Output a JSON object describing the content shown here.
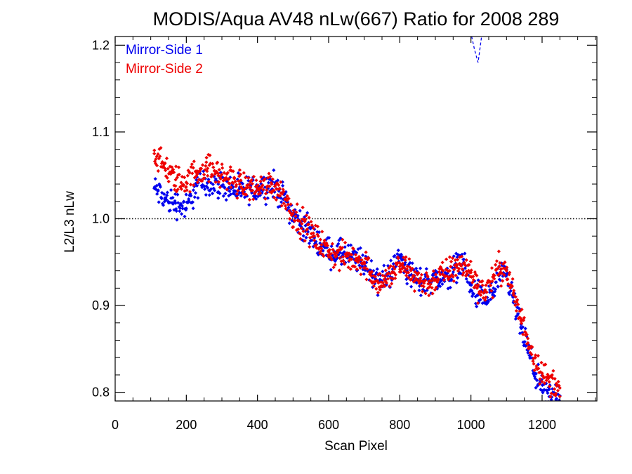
{
  "chart_data": {
    "type": "scatter",
    "title": "MODIS/Aqua AV48 nLw(667) Ratio for 2008 289",
    "xlabel": "Scan Pixel",
    "ylabel": "L2/L3 nLw",
    "xlim": [
      0,
      1354
    ],
    "ylim": [
      0.79,
      1.21
    ],
    "xticks": [
      "0",
      "200",
      "400",
      "600",
      "800",
      "1000",
      "1200"
    ],
    "yticks": [
      "0.8",
      "0.9",
      "1.0",
      "1.1",
      "1.2"
    ],
    "reference_line": {
      "y": 1.0,
      "style": "dotted"
    },
    "legend_placement": "top-left",
    "series": [
      {
        "name": "Mirror-Side 1",
        "color": "#0000ee",
        "x": [
          110,
          140,
          170,
          200,
          230,
          260,
          290,
          320,
          350,
          380,
          410,
          440,
          460,
          480,
          500,
          520,
          540,
          560,
          580,
          600,
          620,
          640,
          660,
          680,
          700,
          720,
          740,
          760,
          780,
          800,
          820,
          840,
          860,
          880,
          900,
          920,
          940,
          960,
          980,
          1000,
          1020,
          1040,
          1060,
          1080,
          1100,
          1120,
          1140,
          1160,
          1180,
          1200,
          1220,
          1240,
          1250
        ],
        "y": [
          1.035,
          1.022,
          1.018,
          1.012,
          1.038,
          1.042,
          1.04,
          1.036,
          1.03,
          1.034,
          1.036,
          1.04,
          1.032,
          1.02,
          1.005,
          0.995,
          0.986,
          0.978,
          0.968,
          0.962,
          0.96,
          0.958,
          0.955,
          0.952,
          0.948,
          0.94,
          0.928,
          0.93,
          0.942,
          0.958,
          0.94,
          0.932,
          0.926,
          0.93,
          0.932,
          0.93,
          0.934,
          0.946,
          0.95,
          0.918,
          0.912,
          0.905,
          0.915,
          0.93,
          0.935,
          0.905,
          0.875,
          0.848,
          0.822,
          0.802,
          0.795,
          0.798,
          0.796
        ]
      },
      {
        "name": "Mirror-Side 2",
        "color": "#ee0000",
        "x": [
          110,
          140,
          170,
          200,
          230,
          260,
          290,
          320,
          350,
          380,
          410,
          440,
          460,
          480,
          500,
          520,
          540,
          560,
          580,
          600,
          620,
          640,
          660,
          680,
          700,
          720,
          740,
          760,
          780,
          800,
          820,
          840,
          860,
          880,
          900,
          920,
          940,
          960,
          980,
          1000,
          1020,
          1040,
          1060,
          1080,
          1100,
          1120,
          1140,
          1160,
          1180,
          1200,
          1220,
          1240,
          1250
        ],
        "y": [
          1.075,
          1.058,
          1.045,
          1.042,
          1.055,
          1.058,
          1.052,
          1.046,
          1.04,
          1.036,
          1.036,
          1.04,
          1.034,
          1.022,
          1.006,
          0.997,
          0.988,
          0.98,
          0.97,
          0.962,
          0.958,
          0.956,
          0.954,
          0.954,
          0.95,
          0.938,
          0.926,
          0.928,
          0.938,
          0.945,
          0.942,
          0.934,
          0.928,
          0.925,
          0.93,
          0.936,
          0.94,
          0.944,
          0.948,
          0.938,
          0.922,
          0.918,
          0.928,
          0.945,
          0.94,
          0.912,
          0.885,
          0.862,
          0.84,
          0.822,
          0.812,
          0.81,
          0.805
        ]
      }
    ],
    "spike": {
      "color": "#0000ee",
      "style": "dashed",
      "x": [
        1002,
        1010,
        1020,
        1030
      ],
      "y": [
        1.21,
        1.195,
        1.18,
        1.21
      ]
    }
  }
}
